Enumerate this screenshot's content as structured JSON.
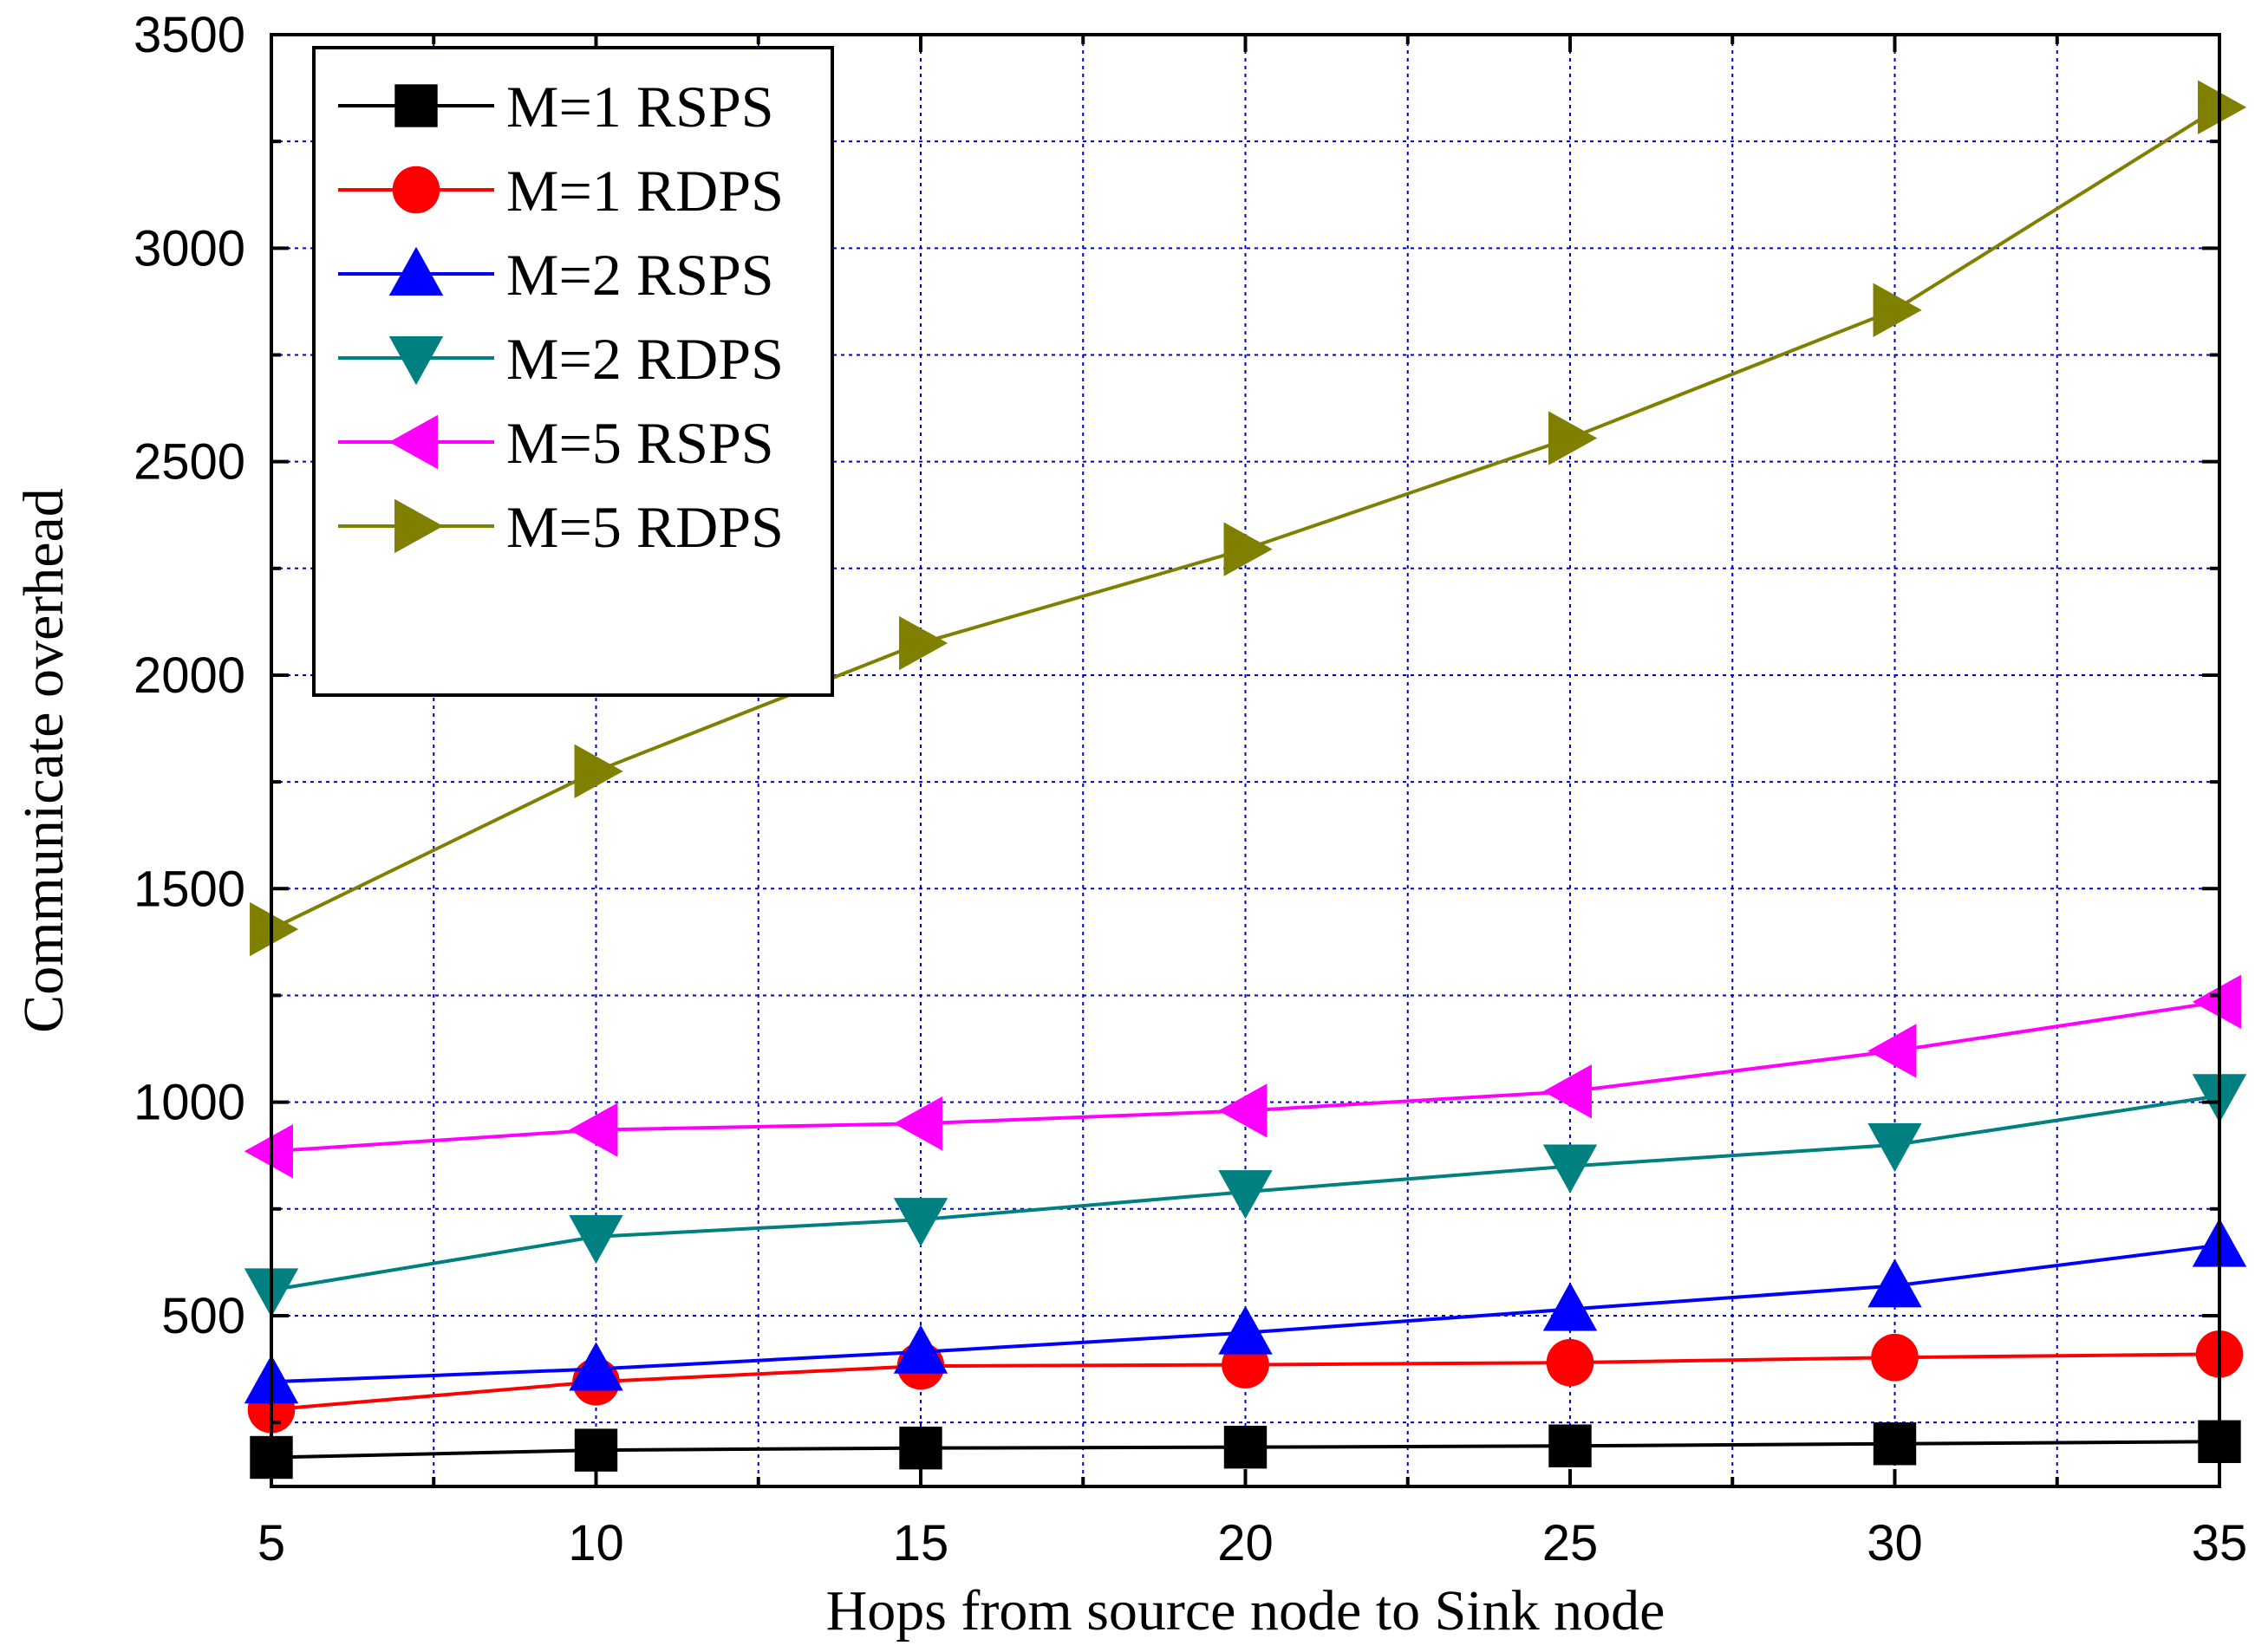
{
  "chart_data": {
    "type": "line",
    "title": "",
    "xlabel": "Hops from source node to Sink node",
    "ylabel": "Communicate overhead",
    "x": [
      5,
      10,
      15,
      20,
      25,
      30,
      35
    ],
    "xlim": [
      5,
      35
    ],
    "ylim": [
      100,
      3500
    ],
    "xticks": [
      5,
      10,
      15,
      20,
      25,
      30,
      35
    ],
    "yticks": [
      500,
      1000,
      1500,
      2000,
      2500,
      3000,
      3500
    ],
    "xtick_labels": [
      "5",
      "10",
      "15",
      "20",
      "25",
      "30",
      "35"
    ],
    "ytick_labels": [
      "500",
      "1000",
      "1500",
      "2000",
      "2500",
      "3000",
      "3500"
    ],
    "grid": true,
    "legend_position": "top-left",
    "series": [
      {
        "name": "M=1 RSPS",
        "marker": "square",
        "color": "#000000",
        "values": [
          168,
          185,
          190,
          192,
          195,
          200,
          205
        ]
      },
      {
        "name": "M=1 RDPS",
        "marker": "circle",
        "color": "#ff0000",
        "values": [
          280,
          345,
          382,
          385,
          390,
          402,
          410
        ]
      },
      {
        "name": "M=2 RSPS",
        "marker": "triangle-up",
        "color": "#0000ff",
        "values": [
          345,
          375,
          415,
          460,
          515,
          570,
          665
        ]
      },
      {
        "name": "M=2 RDPS",
        "marker": "triangle-down",
        "color": "#008080",
        "values": [
          560,
          685,
          725,
          790,
          850,
          900,
          1015
        ]
      },
      {
        "name": "M=5 RSPS",
        "marker": "triangle-left",
        "color": "#ff00ff",
        "values": [
          885,
          935,
          950,
          980,
          1025,
          1120,
          1235
        ]
      },
      {
        "name": "M=5 RDPS",
        "marker": "triangle-right",
        "color": "#808000",
        "values": [
          1405,
          1775,
          2075,
          2295,
          2555,
          2855,
          3330
        ]
      }
    ]
  }
}
